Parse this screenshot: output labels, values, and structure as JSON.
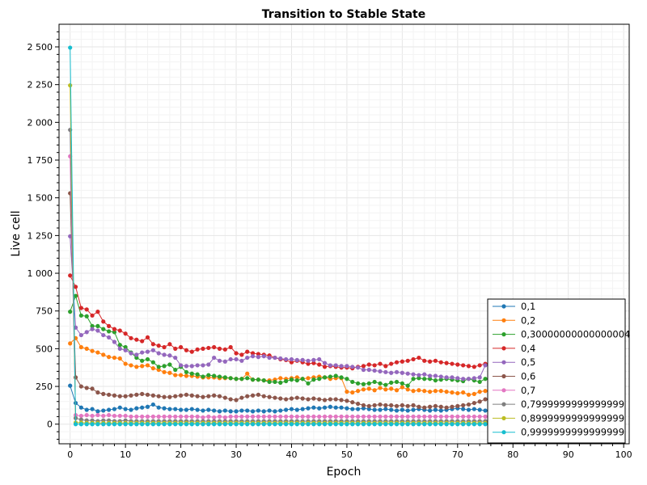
{
  "chart_data": {
    "type": "line",
    "title": "Transition to Stable State",
    "xlabel": "Epoch",
    "ylabel": "Live cell",
    "xlim": [
      -2,
      101
    ],
    "ylim": [
      -130,
      2650
    ],
    "x_ticks": [
      0,
      10,
      20,
      30,
      40,
      50,
      60,
      70,
      80,
      90,
      100
    ],
    "x_tick_labels": [
      "0",
      "10",
      "20",
      "30",
      "40",
      "50",
      "60",
      "70",
      "80",
      "90",
      "100"
    ],
    "y_ticks": [
      0,
      250,
      500,
      750,
      1000,
      1250,
      1500,
      1750,
      2000,
      2250,
      2500
    ],
    "y_tick_labels": [
      "0",
      "250",
      "500",
      "750",
      "1 000",
      "1 250",
      "1 500",
      "1 750",
      "2 000",
      "2 250",
      "2 500"
    ],
    "grid": true,
    "legend_position": "bottom-right",
    "series": [
      {
        "name": "0,1",
        "color": "#1f77b4",
        "values": [
          255,
          140,
          110,
          95,
          100,
          85,
          90,
          95,
          100,
          110,
          100,
          95,
          105,
          110,
          115,
          130,
          110,
          105,
          100,
          100,
          95,
          95,
          100,
          95,
          90,
          95,
          90,
          85,
          90,
          85,
          85,
          90,
          90,
          85,
          90,
          85,
          90,
          85,
          90,
          95,
          100,
          95,
          100,
          105,
          110,
          105,
          110,
          115,
          110,
          110,
          105,
          100,
          100,
          105,
          100,
          95,
          95,
          100,
          95,
          90,
          95,
          90,
          95,
          100,
          95,
          90,
          95,
          90,
          95,
          100,
          105,
          100,
          95,
          100,
          95,
          90
        ]
      },
      {
        "name": "0,2",
        "color": "#ff7f0e",
        "values": [
          535,
          570,
          510,
          500,
          485,
          475,
          460,
          445,
          440,
          435,
          400,
          390,
          380,
          385,
          390,
          370,
          360,
          345,
          340,
          325,
          325,
          320,
          320,
          315,
          310,
          310,
          310,
          305,
          305,
          305,
          300,
          300,
          335,
          295,
          295,
          290,
          290,
          295,
          305,
          300,
          305,
          310,
          300,
          305,
          310,
          315,
          310,
          300,
          305,
          305,
          215,
          210,
          220,
          230,
          235,
          225,
          240,
          230,
          235,
          225,
          245,
          230,
          220,
          225,
          220,
          215,
          220,
          220,
          215,
          210,
          205,
          210,
          195,
          200,
          215,
          220
        ]
      },
      {
        "name": "0,30000000000000004",
        "color": "#2ca02c",
        "values": [
          745,
          850,
          720,
          715,
          650,
          650,
          630,
          615,
          610,
          525,
          510,
          475,
          440,
          420,
          430,
          410,
          380,
          385,
          395,
          360,
          380,
          345,
          335,
          330,
          315,
          325,
          320,
          315,
          310,
          305,
          300,
          300,
          305,
          295,
          295,
          290,
          280,
          280,
          275,
          285,
          295,
          290,
          300,
          270,
          295,
          300,
          310,
          315,
          320,
          310,
          300,
          280,
          270,
          265,
          270,
          280,
          270,
          260,
          275,
          280,
          270,
          255,
          300,
          305,
          300,
          300,
          290,
          295,
          300,
          295,
          290,
          285,
          300,
          290,
          280,
          300
        ]
      },
      {
        "name": "0,4",
        "color": "#d62728",
        "values": [
          985,
          910,
          770,
          760,
          720,
          745,
          680,
          650,
          630,
          620,
          600,
          570,
          560,
          550,
          575,
          530,
          520,
          510,
          530,
          500,
          510,
          490,
          480,
          495,
          500,
          505,
          510,
          500,
          495,
          510,
          470,
          460,
          480,
          470,
          465,
          460,
          455,
          440,
          430,
          425,
          410,
          420,
          410,
          400,
          405,
          395,
          380,
          385,
          380,
          375,
          375,
          370,
          380,
          385,
          395,
          390,
          400,
          385,
          400,
          410,
          415,
          420,
          430,
          440,
          420,
          415,
          420,
          410,
          405,
          400,
          395,
          390,
          385,
          380,
          390,
          400
        ]
      },
      {
        "name": "0,5",
        "color": "#9467bd",
        "values": [
          1245,
          640,
          590,
          610,
          630,
          620,
          590,
          575,
          545,
          500,
          490,
          470,
          460,
          475,
          480,
          490,
          470,
          460,
          455,
          440,
          390,
          385,
          385,
          390,
          390,
          395,
          440,
          420,
          415,
          430,
          430,
          420,
          440,
          450,
          445,
          450,
          440,
          440,
          435,
          430,
          430,
          425,
          425,
          420,
          425,
          430,
          405,
          390,
          390,
          385,
          385,
          380,
          375,
          360,
          360,
          355,
          350,
          345,
          340,
          345,
          340,
          335,
          330,
          325,
          330,
          320,
          320,
          315,
          310,
          310,
          305,
          300,
          300,
          305,
          310,
          390
        ]
      },
      {
        "name": "0,6",
        "color": "#8c564b",
        "values": [
          1530,
          310,
          250,
          240,
          235,
          210,
          200,
          195,
          190,
          185,
          185,
          190,
          195,
          200,
          195,
          190,
          185,
          180,
          180,
          185,
          190,
          195,
          190,
          185,
          180,
          185,
          190,
          185,
          175,
          165,
          160,
          175,
          185,
          190,
          195,
          185,
          180,
          175,
          170,
          165,
          170,
          175,
          170,
          165,
          170,
          165,
          160,
          165,
          165,
          160,
          155,
          145,
          135,
          125,
          120,
          125,
          130,
          125,
          125,
          120,
          125,
          120,
          125,
          115,
          110,
          115,
          120,
          115,
          110,
          115,
          120,
          125,
          130,
          140,
          150,
          165
        ]
      },
      {
        "name": "0,7",
        "color": "#e377c2",
        "values": [
          1775,
          60,
          55,
          60,
          55,
          60,
          55,
          60,
          55,
          55,
          55,
          50,
          50,
          50,
          50,
          50,
          50,
          50,
          50,
          50,
          50,
          50,
          50,
          50,
          45,
          50,
          45,
          50,
          45,
          50,
          50,
          50,
          50,
          50,
          50,
          50,
          50,
          50,
          50,
          50,
          50,
          50,
          50,
          50,
          50,
          50,
          50,
          50,
          50,
          50,
          50,
          50,
          50,
          50,
          50,
          50,
          50,
          50,
          50,
          50,
          50,
          50,
          50,
          50,
          50,
          50,
          50,
          50,
          50,
          50,
          50,
          50,
          50,
          50,
          50,
          50
        ]
      },
      {
        "name": "0,7999999999999999",
        "color": "#7f7f7f",
        "values": [
          1950,
          40,
          30,
          25,
          25,
          20,
          25,
          25,
          20,
          20,
          25,
          20,
          20,
          20,
          20,
          20,
          20,
          20,
          20,
          20,
          20,
          20,
          20,
          20,
          20,
          20,
          20,
          20,
          20,
          20,
          20,
          20,
          20,
          20,
          20,
          20,
          20,
          20,
          20,
          20,
          20,
          20,
          20,
          20,
          20,
          20,
          20,
          20,
          20,
          20,
          20,
          20,
          20,
          20,
          20,
          20,
          20,
          20,
          20,
          20,
          20,
          20,
          20,
          20,
          20,
          20,
          20,
          20,
          20,
          20,
          20,
          20,
          20,
          20,
          20,
          20
        ]
      },
      {
        "name": "0,8999999999999999",
        "color": "#bcbd22",
        "values": [
          2245,
          10,
          10,
          8,
          8,
          8,
          8,
          8,
          8,
          8,
          8,
          8,
          8,
          8,
          8,
          8,
          8,
          8,
          8,
          8,
          8,
          8,
          8,
          8,
          8,
          8,
          8,
          8,
          8,
          8,
          8,
          8,
          8,
          8,
          8,
          8,
          8,
          8,
          8,
          8,
          8,
          8,
          8,
          8,
          8,
          8,
          8,
          8,
          8,
          8,
          8,
          8,
          8,
          8,
          8,
          8,
          8,
          8,
          8,
          8,
          8,
          8,
          8,
          8,
          8,
          8,
          8,
          8,
          8,
          8,
          8,
          8,
          8,
          8,
          8,
          8
        ]
      },
      {
        "name": "0,9999999999999999",
        "color": "#17becf",
        "values": [
          2495,
          0,
          0,
          0,
          0,
          0,
          0,
          0,
          0,
          0,
          0,
          0,
          0,
          0,
          0,
          0,
          0,
          0,
          0,
          0,
          0,
          0,
          0,
          0,
          0,
          0,
          0,
          0,
          0,
          0,
          0,
          0,
          0,
          0,
          0,
          0,
          0,
          0,
          0,
          0,
          0,
          0,
          0,
          0,
          0,
          0,
          0,
          0,
          0,
          0,
          0,
          0,
          0,
          0,
          0,
          0,
          0,
          0,
          0,
          0,
          0,
          0,
          0,
          0,
          0,
          0,
          0,
          0,
          0,
          0,
          0,
          0,
          0,
          0,
          0,
          0
        ]
      }
    ]
  }
}
